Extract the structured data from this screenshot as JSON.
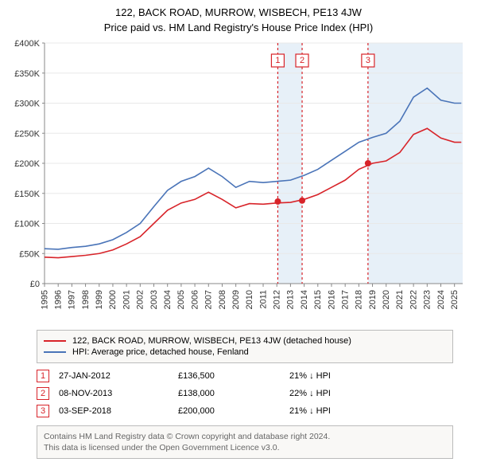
{
  "title": "122, BACK ROAD, MURROW, WISBECH, PE13 4JW",
  "subtitle": "Price paid vs. HM Land Registry's House Price Index (HPI)",
  "chart": {
    "type": "line",
    "background_color": "#ffffff",
    "grid_color": "#e8e8e8",
    "axis_color": "#888888",
    "label_fontsize": 11,
    "ylim": [
      0,
      400000
    ],
    "ytick_step": 50000,
    "yticks": [
      {
        "v": 0,
        "label": "£0"
      },
      {
        "v": 50000,
        "label": "£50K"
      },
      {
        "v": 100000,
        "label": "£100K"
      },
      {
        "v": 150000,
        "label": "£150K"
      },
      {
        "v": 200000,
        "label": "£200K"
      },
      {
        "v": 250000,
        "label": "£250K"
      },
      {
        "v": 300000,
        "label": "£300K"
      },
      {
        "v": 350000,
        "label": "£350K"
      },
      {
        "v": 400000,
        "label": "£400K"
      }
    ],
    "xlim": [
      1995,
      2025.6
    ],
    "xticks": [
      1995,
      1996,
      1997,
      1998,
      1999,
      2000,
      2001,
      2002,
      2003,
      2004,
      2005,
      2006,
      2007,
      2008,
      2009,
      2010,
      2011,
      2012,
      2013,
      2014,
      2015,
      2016,
      2017,
      2018,
      2019,
      2020,
      2021,
      2022,
      2023,
      2024,
      2025
    ],
    "series": [
      {
        "name": "hpi",
        "label": "HPI: Average price, detached house, Fenland",
        "color": "#4a74b8",
        "line_width": 1.6,
        "data": [
          [
            1995,
            58000
          ],
          [
            1996,
            57000
          ],
          [
            1997,
            60000
          ],
          [
            1998,
            62000
          ],
          [
            1999,
            66000
          ],
          [
            2000,
            73000
          ],
          [
            2001,
            85000
          ],
          [
            2002,
            100000
          ],
          [
            2003,
            128000
          ],
          [
            2004,
            155000
          ],
          [
            2005,
            170000
          ],
          [
            2006,
            178000
          ],
          [
            2007,
            192000
          ],
          [
            2008,
            178000
          ],
          [
            2009,
            160000
          ],
          [
            2010,
            170000
          ],
          [
            2011,
            168000
          ],
          [
            2012,
            170000
          ],
          [
            2013,
            172000
          ],
          [
            2014,
            180000
          ],
          [
            2015,
            190000
          ],
          [
            2016,
            205000
          ],
          [
            2017,
            220000
          ],
          [
            2018,
            235000
          ],
          [
            2019,
            243000
          ],
          [
            2020,
            250000
          ],
          [
            2021,
            270000
          ],
          [
            2022,
            310000
          ],
          [
            2023,
            325000
          ],
          [
            2024,
            305000
          ],
          [
            2025,
            300000
          ],
          [
            2025.5,
            300000
          ]
        ]
      },
      {
        "name": "property",
        "label": "122, BACK ROAD, MURROW, WISBECH, PE13 4JW (detached house)",
        "color": "#d8242a",
        "line_width": 1.8,
        "data": [
          [
            1995,
            44000
          ],
          [
            1996,
            43000
          ],
          [
            1997,
            45000
          ],
          [
            1998,
            47000
          ],
          [
            1999,
            50000
          ],
          [
            2000,
            56000
          ],
          [
            2001,
            66000
          ],
          [
            2002,
            78000
          ],
          [
            2003,
            100000
          ],
          [
            2004,
            122000
          ],
          [
            2005,
            134000
          ],
          [
            2006,
            140000
          ],
          [
            2007,
            152000
          ],
          [
            2008,
            140000
          ],
          [
            2009,
            126000
          ],
          [
            2010,
            133000
          ],
          [
            2011,
            132000
          ],
          [
            2012,
            134000
          ],
          [
            2013,
            135000
          ],
          [
            2014,
            140000
          ],
          [
            2015,
            148000
          ],
          [
            2016,
            160000
          ],
          [
            2017,
            172000
          ],
          [
            2018,
            190000
          ],
          [
            2019,
            200000
          ],
          [
            2020,
            204000
          ],
          [
            2021,
            218000
          ],
          [
            2022,
            248000
          ],
          [
            2023,
            258000
          ],
          [
            2024,
            242000
          ],
          [
            2025,
            235000
          ],
          [
            2025.5,
            235000
          ]
        ]
      }
    ],
    "sale_points": [
      {
        "x": 2012.07,
        "y": 136500,
        "color": "#d8242a"
      },
      {
        "x": 2013.85,
        "y": 138000,
        "color": "#d8242a"
      },
      {
        "x": 2018.67,
        "y": 200000,
        "color": "#d8242a"
      }
    ],
    "markers": [
      {
        "n": "1",
        "x": 2012.07,
        "band_start": 2012.07,
        "band_end": 2013.85,
        "color": "#d8242a"
      },
      {
        "n": "2",
        "x": 2013.85,
        "band_start": 2013.85,
        "band_end": 2013.85,
        "color": "#d8242a"
      },
      {
        "n": "3",
        "x": 2018.67,
        "band_start": 2018.67,
        "band_end": 2025.6,
        "color": "#d8242a"
      }
    ]
  },
  "legend": {
    "items": [
      {
        "color": "#d8242a",
        "label": "122, BACK ROAD, MURROW, WISBECH, PE13 4JW (detached house)"
      },
      {
        "color": "#4a74b8",
        "label": "HPI: Average price, detached house, Fenland"
      }
    ]
  },
  "events": [
    {
      "n": "1",
      "date": "27-JAN-2012",
      "price": "£136,500",
      "delta": "21% ↓ HPI",
      "color": "#d8242a"
    },
    {
      "n": "2",
      "date": "08-NOV-2013",
      "price": "£138,000",
      "delta": "22% ↓ HPI",
      "color": "#d8242a"
    },
    {
      "n": "3",
      "date": "03-SEP-2018",
      "price": "£200,000",
      "delta": "21% ↓ HPI",
      "color": "#d8242a"
    }
  ],
  "footnote": {
    "line1": "Contains HM Land Registry data © Crown copyright and database right 2024.",
    "line2": "This data is licensed under the Open Government Licence v3.0."
  }
}
